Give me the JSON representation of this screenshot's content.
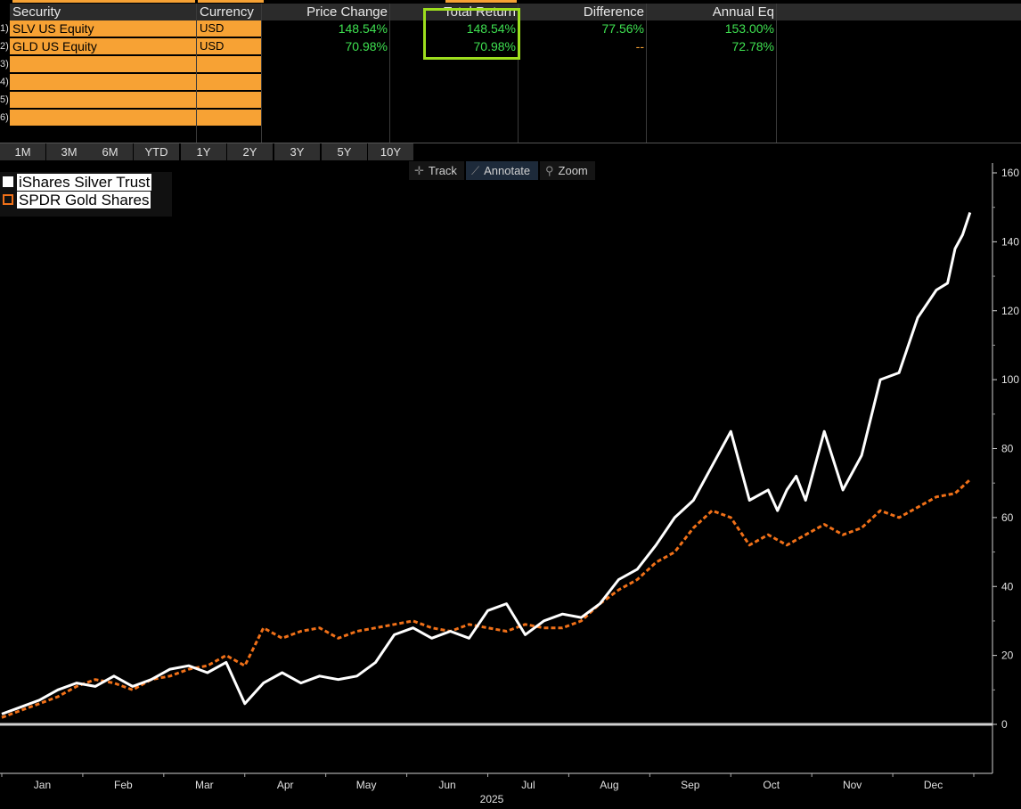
{
  "table": {
    "headers": {
      "security": "Security",
      "currency": "Currency",
      "price_change": "Price Change",
      "total_return": "Total Return",
      "difference": "Difference",
      "annual_eq": "Annual Eq"
    },
    "rows": [
      {
        "num": "1)",
        "security": "SLV US Equity",
        "currency": "USD",
        "price_change": "148.54%",
        "total_return": "148.54%",
        "difference": "77.56%",
        "annual_eq": "153.00%"
      },
      {
        "num": "2)",
        "security": "GLD US Equity",
        "currency": "USD",
        "price_change": "70.98%",
        "total_return": "70.98%",
        "difference": "--",
        "annual_eq": "72.78%"
      },
      {
        "num": "3)",
        "security": "",
        "currency": ""
      },
      {
        "num": "4)",
        "security": "",
        "currency": ""
      },
      {
        "num": "5)",
        "security": "",
        "currency": ""
      },
      {
        "num": "6)",
        "security": "",
        "currency": ""
      }
    ]
  },
  "periods": [
    "1M",
    "3M",
    "6M",
    "YTD",
    "1Y",
    "2Y",
    "3Y",
    "5Y",
    "10Y"
  ],
  "tools": {
    "track": "Track",
    "annotate": "Annotate",
    "zoom": "Zoom"
  },
  "colors": {
    "silver": "#ffffff",
    "gold": "#f07018",
    "accent": "#f7a234",
    "positive": "#3ee050",
    "highlight": "#9dde1e"
  },
  "chart_data": {
    "type": "line",
    "title": "",
    "xlabel": "2025",
    "ylabel": "",
    "ylim": [
      -15,
      160
    ],
    "yticks": [
      0,
      20,
      40,
      60,
      80,
      100,
      120,
      140,
      160
    ],
    "x_ticks": [
      "Jan",
      "Feb",
      "Mar",
      "Apr",
      "May",
      "Jun",
      "Jul",
      "Aug",
      "Sep",
      "Oct",
      "Nov",
      "Dec"
    ],
    "x_unit": "week of 2025 (0 = start of year)",
    "legend_position": "top-left",
    "zero_line": true,
    "series": [
      {
        "name": "iShares Silver Trust",
        "style": "solid",
        "color": "#ffffff",
        "x": [
          0,
          1,
          2,
          3,
          4,
          5,
          6,
          7,
          8,
          9,
          10,
          11,
          12,
          13,
          14,
          15,
          16,
          17,
          18,
          19,
          20,
          21,
          22,
          23,
          24,
          25,
          26,
          27,
          28,
          29,
          30,
          31,
          32,
          33,
          34,
          35,
          36,
          37,
          38,
          39,
          40,
          41,
          41.5,
          42,
          42.5,
          43,
          44,
          45,
          46,
          47,
          48,
          49,
          50,
          50.6,
          51,
          51.4,
          51.8
        ],
        "values": [
          3,
          5,
          7,
          10,
          12,
          11,
          14,
          11,
          13,
          16,
          17,
          15,
          18,
          6,
          12,
          15,
          12,
          14,
          13,
          14,
          18,
          26,
          28,
          25,
          27,
          25,
          33,
          35,
          26,
          30,
          32,
          31,
          35,
          42,
          45,
          52,
          60,
          65,
          75,
          85,
          65,
          68,
          62,
          68,
          72,
          65,
          85,
          68,
          78,
          100,
          102,
          118,
          126,
          128,
          138,
          142,
          148.5
        ]
      },
      {
        "name": "SPDR Gold Shares",
        "style": "dashed",
        "color": "#f07018",
        "x": [
          0,
          1,
          2,
          3,
          4,
          5,
          6,
          7,
          8,
          9,
          10,
          11,
          12,
          13,
          14,
          15,
          16,
          17,
          18,
          19,
          20,
          21,
          22,
          23,
          24,
          25,
          26,
          27,
          28,
          29,
          30,
          31,
          32,
          33,
          34,
          35,
          36,
          37,
          38,
          39,
          40,
          41,
          42,
          43,
          44,
          45,
          46,
          47,
          48,
          49,
          50,
          51,
          51.8
        ],
        "values": [
          2,
          4,
          6,
          8,
          11,
          13,
          12,
          10,
          13,
          14,
          16,
          17,
          20,
          17,
          28,
          25,
          27,
          28,
          25,
          27,
          28,
          29,
          30,
          28,
          27,
          29,
          28,
          27,
          29,
          28,
          28,
          30,
          35,
          39,
          42,
          47,
          50,
          57,
          62,
          60,
          52,
          55,
          52,
          55,
          58,
          55,
          57,
          62,
          60,
          63,
          66,
          67,
          71
        ]
      }
    ]
  }
}
